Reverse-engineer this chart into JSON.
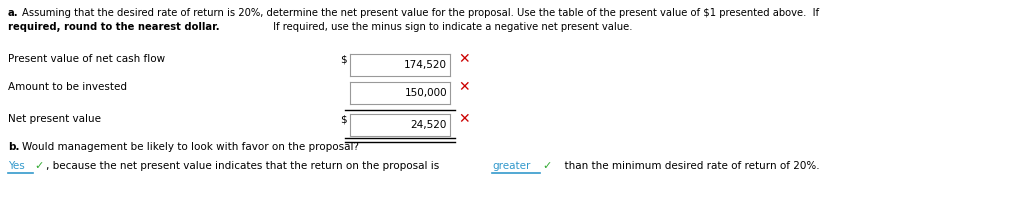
{
  "bg_color": "#ffffff",
  "x_color": "#cc0000",
  "yes_color": "#3399cc",
  "greater_color": "#3399cc",
  "check_color": "#33aa33",
  "label_color": "#000000",
  "fontsize": 7.5,
  "row1_label": "Present value of net cash flow",
  "row1_dollar": "$",
  "row1_value": "174,520",
  "row2_label": "Amount to be invested",
  "row2_value": "150,000",
  "row3_label": "Net present value",
  "row3_dollar": "$",
  "row3_value": "24,520"
}
